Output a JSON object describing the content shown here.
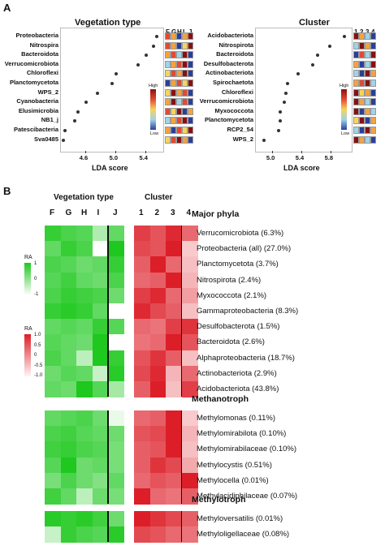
{
  "panel_a": {
    "letter": "A",
    "chart_data": [
      {
        "type": "scatter",
        "title": "Vegetation type",
        "xlabel": "LDA score",
        "xticks": [
          "4.6",
          "5.0",
          "5.4"
        ],
        "xlim": [
          4.3,
          5.6
        ],
        "taxa": [
          "Proteobacteria",
          "Nitrospira",
          "Bacteroidota",
          "Verrucomicrobiota",
          "Chloroflexi",
          "Planctomycetota",
          "WPS_2",
          "Cyanobacteria",
          "Elusimicrobia",
          "NB1_j",
          "Patescibacteria",
          "Sva0485"
        ],
        "values": [
          5.55,
          5.5,
          5.4,
          5.3,
          5.0,
          4.95,
          4.75,
          4.6,
          4.5,
          4.45,
          4.32,
          4.3
        ],
        "columns": [
          "F",
          "G",
          "H",
          "I",
          "J"
        ],
        "legend": {
          "high": "High",
          "low": "Low"
        },
        "mini_heatmap": [
          [
            "#e24a33",
            "#f2a340",
            "#2a3f9a",
            "#f2a340",
            "#8a1010"
          ],
          [
            "#e24a33",
            "#f2a340",
            "#2a3f9a",
            "#f6d55c",
            "#8a1010"
          ],
          [
            "#f2a340",
            "#e24a33",
            "#9fd3e8",
            "#8a1010",
            "#2a3f9a"
          ],
          [
            "#9fd3e8",
            "#f2a340",
            "#e24a33",
            "#8a1010",
            "#2a3f9a"
          ],
          [
            "#f6d55c",
            "#e24a33",
            "#f2a340",
            "#8a1010",
            "#2a3f9a"
          ],
          [
            "#2a3f9a",
            "#f2a340",
            "#e24a33",
            "#f6d55c",
            "#8a1010"
          ],
          [
            "#f6d55c",
            "#8a1010",
            "#f2a340",
            "#e24a33",
            "#2a3f9a"
          ],
          [
            "#f2a340",
            "#8a1010",
            "#9fd3e8",
            "#e24a33",
            "#2a3f9a"
          ],
          [
            "#e24a33",
            "#f6d55c",
            "#8a1010",
            "#2a3f9a",
            "#f2a340"
          ],
          [
            "#9fd3e8",
            "#f2a340",
            "#e24a33",
            "#8a1010",
            "#2a3f9a"
          ],
          [
            "#f2a340",
            "#2a3f9a",
            "#e24a33",
            "#f6d55c",
            "#8a1010"
          ],
          [
            "#f6d55c",
            "#e24a33",
            "#8a1010",
            "#f2a340",
            "#2a3f9a"
          ]
        ]
      },
      {
        "type": "scatter",
        "title": "Cluster",
        "xlabel": "LDA score",
        "xticks": [
          "5.0",
          "5.4",
          "5.8"
        ],
        "xlim": [
          4.8,
          6.05
        ],
        "taxa": [
          "Acidobacteriota",
          "Nitrospirota",
          "Bacteroidota",
          "Desulfobacterota",
          "Actinobacteriota",
          "Spirochaetota",
          "Chloroflexi",
          "Verrucomicrobiota",
          "Myxococcota",
          "Planctomycetota",
          "RCP2_54",
          "WPS_2"
        ],
        "values": [
          5.98,
          5.78,
          5.62,
          5.55,
          5.35,
          5.2,
          5.18,
          5.16,
          5.1,
          5.1,
          5.08,
          4.88
        ],
        "columns": [
          "1",
          "2",
          "3",
          "4"
        ],
        "legend": {
          "high": "High",
          "low": "Low"
        },
        "mini_heatmap": [
          [
            "#8a1010",
            "#f2a340",
            "#9fd3e8",
            "#2a3f9a"
          ],
          [
            "#9fd3e8",
            "#8a1010",
            "#f2a340",
            "#2a3f9a"
          ],
          [
            "#2a3f9a",
            "#e24a33",
            "#9fd3e8",
            "#8a1010"
          ],
          [
            "#f2a340",
            "#2a3f9a",
            "#9fd3e8",
            "#8a1010"
          ],
          [
            "#9fd3e8",
            "#2a3f9a",
            "#8a1010",
            "#f2a340"
          ],
          [
            "#f2a340",
            "#e24a33",
            "#8a1010",
            "#9fd3e8"
          ],
          [
            "#8a1010",
            "#f6d55c",
            "#f2a340",
            "#2a3f9a"
          ],
          [
            "#8a1010",
            "#f2a340",
            "#9fd3e8",
            "#2a3f9a"
          ],
          [
            "#8a1010",
            "#2a3f9a",
            "#f2a340",
            "#9fd3e8"
          ],
          [
            "#f6d55c",
            "#8a1010",
            "#2a3f9a",
            "#f2a340"
          ],
          [
            "#9fd3e8",
            "#2a3f9a",
            "#8a1010",
            "#f2a340"
          ],
          [
            "#8a1010",
            "#f2a340",
            "#9fd3e8",
            "#2a3f9a"
          ]
        ]
      }
    ]
  },
  "panel_b": {
    "letter": "B",
    "chart_data": {
      "type": "heatmap",
      "left_title": "Vegetation type",
      "right_title": "Cluster",
      "left_columns": [
        "F",
        "G",
        "H",
        "I",
        "J"
      ],
      "right_columns": [
        "1",
        "2",
        "3",
        "4"
      ],
      "green_legend": {
        "title": "RA",
        "ticks": [
          "1",
          "0",
          "-1"
        ]
      },
      "red_legend": {
        "title": "RA",
        "ticks": [
          "1.0",
          "0.5",
          "0",
          "-0.5",
          "-1.0"
        ]
      },
      "groups": [
        {
          "name": "Major phyla",
          "rows": [
            {
              "label": "Verrucomicrobiota (6.3%)",
              "veg": [
                0.8,
                0.6,
                0.5,
                -0.3,
                0.4
              ],
              "clu": [
                0.7,
                0.5,
                0.9,
                0.3
              ]
            },
            {
              "label": "Proteobacteria (all) (27.0%)",
              "veg": [
                0.4,
                0.8,
                0.6,
                -1.0,
                1.0
              ],
              "clu": [
                0.6,
                0.5,
                1.0,
                -0.6
              ]
            },
            {
              "label": "Planctomycetota (3.7%)",
              "veg": [
                0.6,
                0.5,
                0.3,
                0.4,
                0.8
              ],
              "clu": [
                0.4,
                1.0,
                0.3,
                -0.5
              ]
            },
            {
              "label": "Nitrospirota (2.4%)",
              "veg": [
                0.5,
                0.7,
                0.4,
                0.3,
                0.6
              ],
              "clu": [
                0.3,
                0.4,
                1.0,
                -0.4
              ]
            },
            {
              "label": "Myxococcota (2.1%)",
              "veg": [
                0.6,
                0.8,
                0.7,
                0.6,
                0.3
              ],
              "clu": [
                0.7,
                0.9,
                0.3,
                -0.2
              ]
            },
            {
              "label": "Gammaproteobacteria (8.3%)",
              "veg": [
                0.8,
                0.9,
                0.8,
                0.4,
                -1.0
              ],
              "clu": [
                0.9,
                0.6,
                0.4,
                -0.5
              ]
            },
            {
              "label": "Desulfobacterota (1.5%)",
              "veg": [
                0.4,
                0.5,
                0.4,
                0.8,
                0.5
              ],
              "clu": [
                0.3,
                0.2,
                0.7,
                0.8
              ]
            },
            {
              "label": "Bacteroidota (2.6%)",
              "veg": [
                0.5,
                0.4,
                0.3,
                1.0,
                -1.0
              ],
              "clu": [
                0.2,
                0.3,
                1.0,
                0.5
              ]
            },
            {
              "label": "Alphaproteobacteria (18.7%)",
              "veg": [
                0.6,
                0.4,
                -0.4,
                1.0,
                0.8
              ],
              "clu": [
                0.5,
                0.8,
                0.4,
                -0.5
              ]
            },
            {
              "label": "Actinobacteriota (2.9%)",
              "veg": [
                0.3,
                0.5,
                0.4,
                -0.5,
                0.9
              ],
              "clu": [
                0.6,
                0.9,
                -0.4,
                0.3
              ]
            },
            {
              "label": "Acidobacteriota (43.8%)",
              "veg": [
                0.4,
                0.3,
                1.0,
                0.5,
                -0.2
              ],
              "clu": [
                0.4,
                1.0,
                -0.5,
                0.7
              ]
            }
          ]
        },
        {
          "name": "Methanotroph",
          "rows": [
            {
              "label": "Methylomonas (0.11%)",
              "veg": [
                0.4,
                0.5,
                0.6,
                0.3,
                -0.8
              ],
              "clu": [
                0.3,
                0.4,
                1.0,
                -0.6
              ]
            },
            {
              "label": "Methylomirabilota (0.10%)",
              "veg": [
                0.6,
                0.7,
                0.5,
                0.4,
                0.3
              ],
              "clu": [
                0.5,
                0.6,
                1.0,
                -0.4
              ]
            },
            {
              "label": "Methylomirabilaceae (0.10%)",
              "veg": [
                0.7,
                0.8,
                0.6,
                0.5,
                0.2
              ],
              "clu": [
                0.4,
                0.5,
                1.0,
                -0.5
              ]
            },
            {
              "label": "Methylocystis (0.51%)",
              "veg": [
                0.5,
                1.0,
                0.3,
                0.4,
                0.2
              ],
              "clu": [
                0.4,
                0.8,
                0.6,
                -0.3
              ]
            },
            {
              "label": "Methylocella (0.01%)",
              "veg": [
                0.2,
                0.6,
                0.3,
                0.1,
                0.4
              ],
              "clu": [
                0.3,
                0.5,
                0.4,
                1.0
              ]
            },
            {
              "label": "Methylacidiphilaceae (0.07%)",
              "veg": [
                0.7,
                0.4,
                -0.4,
                0.3,
                0.2
              ],
              "clu": [
                1.0,
                0.3,
                0.2,
                0.4
              ]
            }
          ]
        },
        {
          "name": "Methylotroph",
          "rows": [
            {
              "label": "Methyloversatilis (0.01%)",
              "veg": [
                0.9,
                0.8,
                0.9,
                0.7,
                0.3
              ],
              "clu": [
                1.0,
                0.8,
                0.6,
                0.4
              ]
            },
            {
              "label": "Methyloligellaceae (0.08%)",
              "veg": [
                -0.5,
                0.8,
                0.6,
                0.5,
                0.9
              ],
              "clu": [
                0.6,
                0.5,
                0.3,
                0.2
              ]
            }
          ]
        }
      ]
    }
  }
}
